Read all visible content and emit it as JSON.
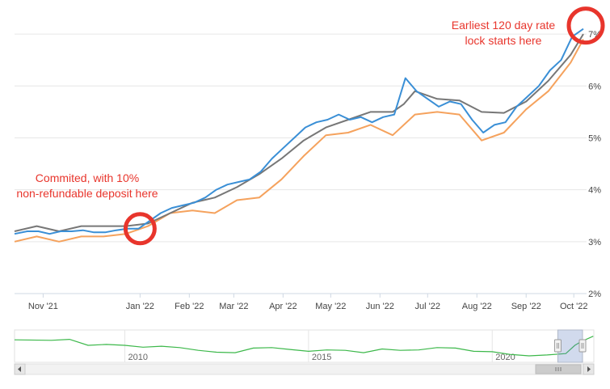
{
  "chart_data": {
    "type": "line",
    "title": "",
    "xlabel": "",
    "ylabel": "",
    "x_ticks": [
      "Nov '21",
      "Jan '22",
      "Feb '22",
      "Mar '22",
      "Apr '22",
      "May '22",
      "Jun '22",
      "Jul '22",
      "Aug '22",
      "Sep '22",
      "Oct '22"
    ],
    "y_ticks": [
      "2%",
      "3%",
      "4%",
      "5%",
      "6%",
      "7%"
    ],
    "ylim": [
      2,
      7.5
    ],
    "xlim": [
      "2021-10-14",
      "2022-10-07"
    ],
    "grid": "horizontal",
    "series": [
      {
        "color": "#3a8fd6",
        "points": [
          [
            "2021-10-14",
            3.15
          ],
          [
            "2021-10-22",
            3.2
          ],
          [
            "2021-10-29",
            3.2
          ],
          [
            "2021-11-05",
            3.15
          ],
          [
            "2021-11-12",
            3.2
          ],
          [
            "2021-11-19",
            3.2
          ],
          [
            "2021-11-26",
            3.22
          ],
          [
            "2021-12-03",
            3.18
          ],
          [
            "2021-12-10",
            3.18
          ],
          [
            "2021-12-17",
            3.22
          ],
          [
            "2021-12-24",
            3.25
          ],
          [
            "2021-12-31",
            3.25
          ],
          [
            "2022-01-07",
            3.4
          ],
          [
            "2022-01-14",
            3.55
          ],
          [
            "2022-01-21",
            3.65
          ],
          [
            "2022-01-28",
            3.7
          ],
          [
            "2022-02-04",
            3.75
          ],
          [
            "2022-02-11",
            3.85
          ],
          [
            "2022-02-18",
            4.0
          ],
          [
            "2022-02-25",
            4.1
          ],
          [
            "2022-03-04",
            4.15
          ],
          [
            "2022-03-11",
            4.2
          ],
          [
            "2022-03-18",
            4.35
          ],
          [
            "2022-03-25",
            4.6
          ],
          [
            "2022-04-01",
            4.8
          ],
          [
            "2022-04-08",
            5.0
          ],
          [
            "2022-04-15",
            5.2
          ],
          [
            "2022-04-22",
            5.3
          ],
          [
            "2022-04-29",
            5.35
          ],
          [
            "2022-05-06",
            5.45
          ],
          [
            "2022-05-13",
            5.35
          ],
          [
            "2022-05-20",
            5.4
          ],
          [
            "2022-05-27",
            5.3
          ],
          [
            "2022-06-03",
            5.4
          ],
          [
            "2022-06-10",
            5.45
          ],
          [
            "2022-06-17",
            6.15
          ],
          [
            "2022-06-24",
            5.9
          ],
          [
            "2022-07-01",
            5.75
          ],
          [
            "2022-07-08",
            5.6
          ],
          [
            "2022-07-15",
            5.7
          ],
          [
            "2022-07-22",
            5.65
          ],
          [
            "2022-07-29",
            5.35
          ],
          [
            "2022-08-05",
            5.1
          ],
          [
            "2022-08-12",
            5.25
          ],
          [
            "2022-08-19",
            5.3
          ],
          [
            "2022-08-26",
            5.6
          ],
          [
            "2022-09-02",
            5.8
          ],
          [
            "2022-09-09",
            6.0
          ],
          [
            "2022-09-16",
            6.3
          ],
          [
            "2022-09-23",
            6.5
          ],
          [
            "2022-09-30",
            6.95
          ],
          [
            "2022-10-07",
            7.1
          ]
        ]
      },
      {
        "color": "#777777",
        "points": [
          [
            "2021-10-14",
            3.2
          ],
          [
            "2021-10-28",
            3.3
          ],
          [
            "2021-11-11",
            3.2
          ],
          [
            "2021-11-25",
            3.3
          ],
          [
            "2021-12-09",
            3.3
          ],
          [
            "2021-12-23",
            3.3
          ],
          [
            "2022-01-06",
            3.35
          ],
          [
            "2022-01-20",
            3.55
          ],
          [
            "2022-02-03",
            3.75
          ],
          [
            "2022-02-17",
            3.85
          ],
          [
            "2022-03-03",
            4.05
          ],
          [
            "2022-03-17",
            4.3
          ],
          [
            "2022-03-31",
            4.6
          ],
          [
            "2022-04-14",
            4.95
          ],
          [
            "2022-04-28",
            5.2
          ],
          [
            "2022-05-12",
            5.35
          ],
          [
            "2022-05-26",
            5.5
          ],
          [
            "2022-06-09",
            5.5
          ],
          [
            "2022-06-16",
            5.65
          ],
          [
            "2022-06-23",
            5.9
          ],
          [
            "2022-07-07",
            5.75
          ],
          [
            "2022-07-21",
            5.72
          ],
          [
            "2022-08-04",
            5.5
          ],
          [
            "2022-08-18",
            5.48
          ],
          [
            "2022-09-01",
            5.7
          ],
          [
            "2022-09-15",
            6.1
          ],
          [
            "2022-09-29",
            6.6
          ],
          [
            "2022-10-07",
            7.0
          ]
        ]
      },
      {
        "color": "#f5a25d",
        "points": [
          [
            "2021-10-14",
            3.0
          ],
          [
            "2021-10-28",
            3.1
          ],
          [
            "2021-11-11",
            3.0
          ],
          [
            "2021-11-25",
            3.1
          ],
          [
            "2021-12-09",
            3.1
          ],
          [
            "2021-12-23",
            3.15
          ],
          [
            "2022-01-06",
            3.3
          ],
          [
            "2022-01-20",
            3.55
          ],
          [
            "2022-02-03",
            3.6
          ],
          [
            "2022-02-17",
            3.55
          ],
          [
            "2022-03-03",
            3.8
          ],
          [
            "2022-03-17",
            3.85
          ],
          [
            "2022-03-31",
            4.2
          ],
          [
            "2022-04-14",
            4.65
          ],
          [
            "2022-04-28",
            5.05
          ],
          [
            "2022-05-12",
            5.1
          ],
          [
            "2022-05-26",
            5.25
          ],
          [
            "2022-06-09",
            5.05
          ],
          [
            "2022-06-23",
            5.45
          ],
          [
            "2022-07-07",
            5.5
          ],
          [
            "2022-07-21",
            5.45
          ],
          [
            "2022-08-04",
            4.95
          ],
          [
            "2022-08-18",
            5.1
          ],
          [
            "2022-09-01",
            5.55
          ],
          [
            "2022-09-15",
            5.9
          ],
          [
            "2022-09-29",
            6.45
          ],
          [
            "2022-10-07",
            6.9
          ]
        ]
      }
    ],
    "annotations": [
      {
        "lines": [
          "Commited, with 10%",
          "non-refundable deposit here"
        ],
        "date": "2021-12-31",
        "value": 3.25
      },
      {
        "lines": [
          "Earliest 120 day rate",
          "lock starts here"
        ],
        "date": "2022-10-07",
        "value": 7.1
      }
    ],
    "navigator": {
      "ticks": [
        "2010",
        "2015",
        "2020"
      ],
      "range": [
        "2007-01-01",
        "2022-10-07"
      ],
      "points": [
        [
          "2007-01",
          6.2
        ],
        [
          "2008-01",
          6.1
        ],
        [
          "2008-07",
          6.3
        ],
        [
          "2009-01",
          5.0
        ],
        [
          "2009-07",
          5.2
        ],
        [
          "2010-01",
          5.0
        ],
        [
          "2010-07",
          4.6
        ],
        [
          "2011-01",
          4.8
        ],
        [
          "2011-07",
          4.5
        ],
        [
          "2012-01",
          3.9
        ],
        [
          "2012-07",
          3.5
        ],
        [
          "2013-01",
          3.4
        ],
        [
          "2013-07",
          4.4
        ],
        [
          "2014-01",
          4.5
        ],
        [
          "2014-07",
          4.1
        ],
        [
          "2015-01",
          3.7
        ],
        [
          "2015-07",
          4.0
        ],
        [
          "2016-01",
          3.9
        ],
        [
          "2016-07",
          3.4
        ],
        [
          "2017-01",
          4.2
        ],
        [
          "2017-07",
          3.9
        ],
        [
          "2018-01",
          4.0
        ],
        [
          "2018-07",
          4.5
        ],
        [
          "2019-01",
          4.4
        ],
        [
          "2019-07",
          3.7
        ],
        [
          "2020-01",
          3.6
        ],
        [
          "2020-07",
          3.0
        ],
        [
          "2021-01",
          2.7
        ],
        [
          "2021-07",
          2.9
        ],
        [
          "2022-01",
          3.2
        ],
        [
          "2022-04",
          5.0
        ],
        [
          "2022-06",
          5.8
        ],
        [
          "2022-10",
          7.0
        ]
      ]
    }
  }
}
